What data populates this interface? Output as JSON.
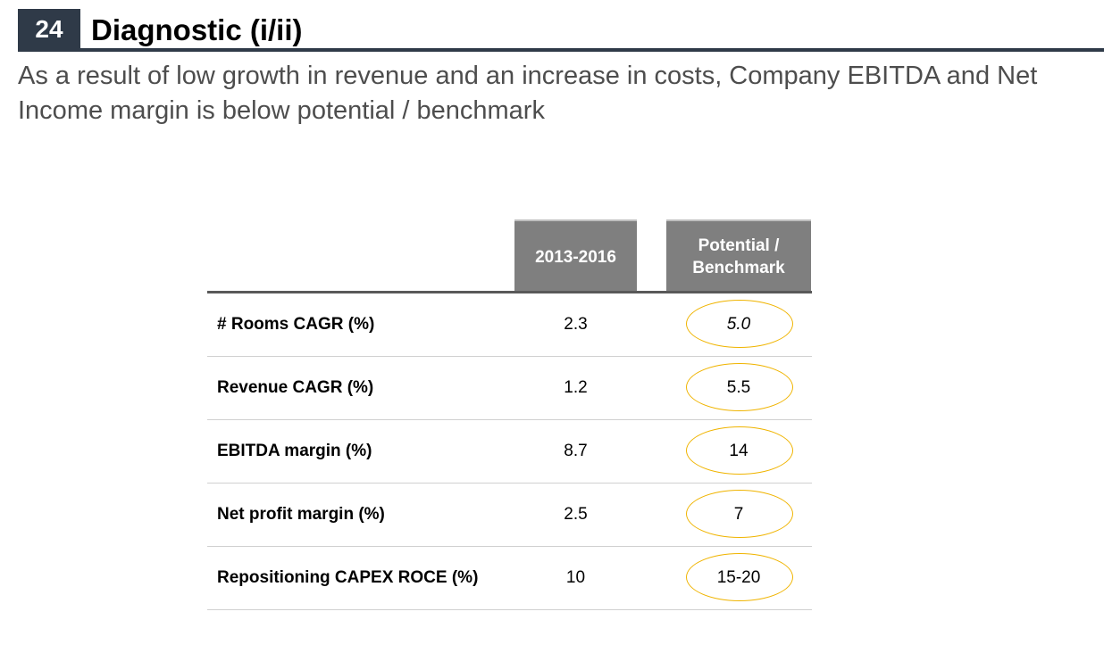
{
  "header": {
    "page_number": "24",
    "title": "Diagnostic (i/ii)",
    "subtitle": "As a result of low growth in revenue and an increase in costs, Company EBITDA and Net Income margin is below potential / benchmark"
  },
  "table": {
    "columns": {
      "period": "2013-2016",
      "benchmark_line1": "Potential /",
      "benchmark_line2": "Benchmark"
    },
    "rows": [
      {
        "label": "# Rooms CAGR (%)",
        "value": "2.3",
        "benchmark": "5.0"
      },
      {
        "label": "Revenue CAGR (%)",
        "value": "1.2",
        "benchmark": "5.5"
      },
      {
        "label": "EBITDA margin (%)",
        "value": "8.7",
        "benchmark": "14"
      },
      {
        "label": "Net profit margin (%)",
        "value": "2.5",
        "benchmark": "7"
      },
      {
        "label": "Repositioning CAPEX ROCE (%)",
        "value": "10",
        "benchmark": "15-20"
      }
    ]
  },
  "colors": {
    "header_block": "#2f3a48",
    "column_header": "#7f7f7f",
    "highlight_oval": "#f0b400",
    "subtitle_text": "#4d4d4d"
  }
}
